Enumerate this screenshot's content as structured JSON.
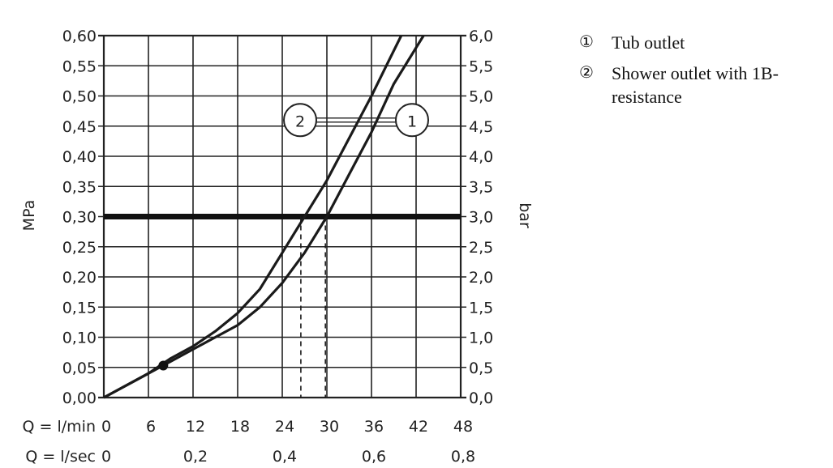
{
  "chart_data": {
    "type": "line",
    "xlabel": "",
    "ylabel": "MPa",
    "y2label": "bar",
    "xlim": [
      0,
      48
    ],
    "ylim": [
      0,
      0.6
    ],
    "x_ticks": [
      "0",
      "6",
      "12",
      "18",
      "24",
      "30",
      "36",
      "42",
      "48"
    ],
    "x_axis_prefix": "Q = l/min",
    "x2_ticks": [
      "0",
      "0,2",
      "0,4",
      "0,6",
      "0,8"
    ],
    "x2_axis_prefix": "Q = l/sec",
    "y_ticks": [
      "0,00",
      "0,05",
      "0,10",
      "0,15",
      "0,20",
      "0,25",
      "0,30",
      "0,35",
      "0,40",
      "0,45",
      "0,50",
      "0,55",
      "0,60"
    ],
    "y2_ticks": [
      "0,0",
      "0,5",
      "1,0",
      "1,5",
      "2,0",
      "2,5",
      "3,0",
      "3,5",
      "4,0",
      "4,5",
      "5,0",
      "5,5",
      "6,0"
    ],
    "grid": true,
    "reference_line": {
      "y": 0.3
    },
    "series": [
      {
        "name": "1",
        "points": [
          [
            0,
            0
          ],
          [
            6,
            0.04
          ],
          [
            9,
            0.06
          ],
          [
            12,
            0.08
          ],
          [
            15,
            0.1
          ],
          [
            18,
            0.12
          ],
          [
            21,
            0.15
          ],
          [
            24,
            0.19
          ],
          [
            27,
            0.24
          ],
          [
            30,
            0.3
          ],
          [
            33,
            0.37
          ],
          [
            36,
            0.44
          ],
          [
            39,
            0.52
          ],
          [
            42,
            0.58
          ],
          [
            43,
            0.6
          ]
        ],
        "drop_x": 29.8
      },
      {
        "name": "2",
        "points": [
          [
            0,
            0
          ],
          [
            6,
            0.04
          ],
          [
            9,
            0.065
          ],
          [
            12,
            0.085
          ],
          [
            15,
            0.11
          ],
          [
            18,
            0.14
          ],
          [
            21,
            0.18
          ],
          [
            24,
            0.24
          ],
          [
            27,
            0.3
          ],
          [
            30,
            0.36
          ],
          [
            33,
            0.43
          ],
          [
            36,
            0.5
          ],
          [
            38,
            0.55
          ],
          [
            40,
            0.6
          ]
        ],
        "drop_x": 26.5
      }
    ],
    "marker_point": [
      8,
      0.053
    ],
    "series_labels": [
      "2",
      "1"
    ]
  },
  "legend": {
    "items": [
      {
        "marker": "①",
        "label": "Tub outlet"
      },
      {
        "marker": "②",
        "label": "Shower outlet with 1B-resistance"
      }
    ]
  }
}
